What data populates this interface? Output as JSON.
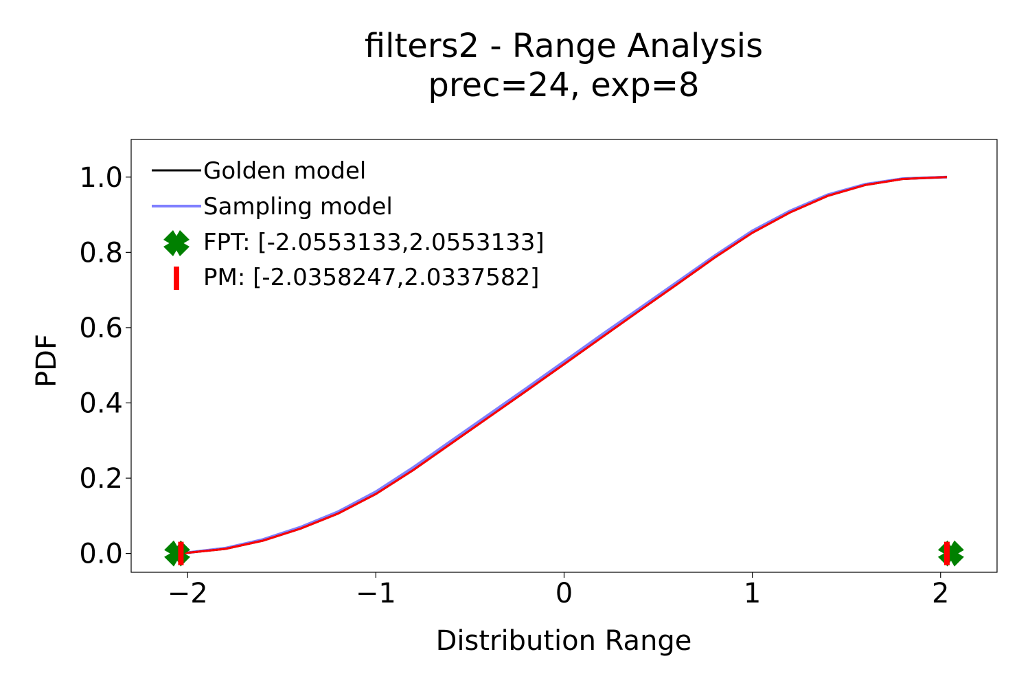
{
  "chart_data": {
    "type": "line",
    "title": "filters2 - Range Analysis",
    "subtitle": "prec=24, exp=8",
    "xlabel": "Distribution Range",
    "ylabel": "PDF",
    "xlim": [
      -2.3,
      2.3
    ],
    "ylim": [
      -0.05,
      1.1
    ],
    "xticks": [
      -2,
      -1,
      0,
      1,
      2
    ],
    "xtick_labels": [
      "−2",
      "−1",
      "0",
      "1",
      "2"
    ],
    "yticks": [
      0.0,
      0.2,
      0.4,
      0.6,
      0.8,
      1.0
    ],
    "ytick_labels": [
      "0.0",
      "0.2",
      "0.4",
      "0.6",
      "0.8",
      "1.0"
    ],
    "grid": false,
    "legend_position": "top-left",
    "series": [
      {
        "name": "Golden model",
        "kind": "line",
        "color": "#000000",
        "x": [
          -2.0358,
          -1.8,
          -1.6,
          -1.4,
          -1.2,
          -1.0,
          -0.8,
          -0.6,
          -0.4,
          -0.2,
          0.0,
          0.2,
          0.4,
          0.6,
          0.8,
          1.0,
          1.2,
          1.4,
          1.6,
          1.8,
          2.0338
        ],
        "y": [
          0.0,
          0.012,
          0.034,
          0.066,
          0.106,
          0.158,
          0.222,
          0.292,
          0.362,
          0.432,
          0.503,
          0.574,
          0.645,
          0.715,
          0.786,
          0.852,
          0.906,
          0.95,
          0.979,
          0.995,
          1.0
        ]
      },
      {
        "name": "Sampling model",
        "kind": "line",
        "color": "#7f7fff",
        "x": [
          -2.0358,
          -1.8,
          -1.6,
          -1.4,
          -1.2,
          -1.0,
          -0.8,
          -0.6,
          -0.4,
          -0.2,
          0.0,
          0.2,
          0.4,
          0.6,
          0.8,
          1.0,
          1.2,
          1.4,
          1.6,
          1.8,
          2.0338
        ],
        "y": [
          0.0,
          0.014,
          0.037,
          0.07,
          0.111,
          0.164,
          0.229,
          0.299,
          0.369,
          0.439,
          0.51,
          0.581,
          0.651,
          0.721,
          0.791,
          0.857,
          0.91,
          0.953,
          0.981,
          0.996,
          1.0
        ]
      },
      {
        "name": "FPT: [-2.0553133,2.0553133]",
        "kind": "marker",
        "marker": "X",
        "color": "#008000",
        "x": [
          -2.0553133,
          2.0553133
        ],
        "y": [
          0.0,
          0.0
        ]
      },
      {
        "name": "PM: [-2.0358247,2.0337582]",
        "kind": "marker",
        "marker": "|",
        "color": "#ff0000",
        "x": [
          -2.0358247,
          2.0337582
        ],
        "y": [
          0.0,
          0.0
        ]
      }
    ]
  }
}
